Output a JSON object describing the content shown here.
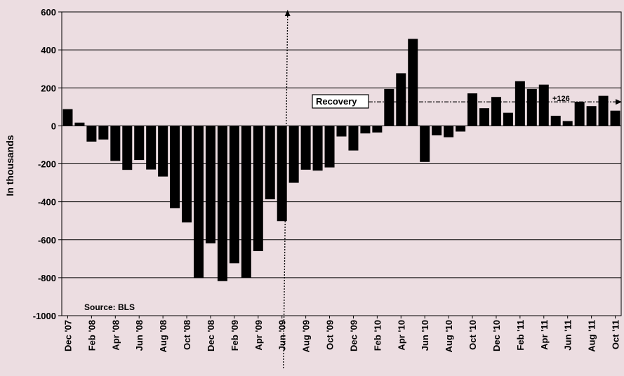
{
  "chart_data": {
    "type": "bar",
    "ylabel": "In thousands",
    "ylim": [
      -1000,
      600
    ],
    "yticks": [
      600,
      400,
      200,
      0,
      -200,
      -400,
      -600,
      -800,
      -1000
    ],
    "grid": true,
    "x_tick_labels": [
      "Dec '07",
      "Feb '08",
      "Apr '08",
      "Jun '08",
      "Aug '08",
      "Oct '08",
      "Dec '08",
      "Feb '09",
      "Apr '09",
      "Jun '09",
      "Aug '09",
      "Oct '09",
      "Dec '09",
      "Feb '10",
      "Apr '10",
      "Jun '10",
      "Aug '10",
      "Oct '10",
      "Dec '10",
      "Feb '11",
      "Apr '11",
      "Jun '11",
      "Aug '11",
      "Oct '11"
    ],
    "categories": [
      "Dec '07",
      "Jan '08",
      "Feb '08",
      "Mar '08",
      "Apr '08",
      "May '08",
      "Jun '08",
      "Jul '08",
      "Aug '08",
      "Sep '08",
      "Oct '08",
      "Nov '08",
      "Dec '08",
      "Jan '09",
      "Feb '09",
      "Mar '09",
      "Apr '09",
      "May '09",
      "Jun '09",
      "Jul '09",
      "Aug '09",
      "Sep '09",
      "Oct '09",
      "Nov '09",
      "Dec '09",
      "Jan '10",
      "Feb '10",
      "Mar '10",
      "Apr '10",
      "May '10",
      "Jun '10",
      "Jul '10",
      "Aug '10",
      "Sep '10",
      "Oct '10",
      "Nov '10",
      "Dec '10",
      "Jan '11",
      "Feb '11",
      "Mar '11",
      "Apr '11",
      "May '11",
      "Jun '11",
      "Jul '11",
      "Aug '11",
      "Sep '11",
      "Oct '11"
    ],
    "values": [
      88,
      17,
      -83,
      -72,
      -185,
      -232,
      -180,
      -230,
      -267,
      -434,
      -509,
      -802,
      -619,
      -818,
      -724,
      -799,
      -660,
      -387,
      -502,
      -300,
      -231,
      -236,
      -219,
      -56,
      -130,
      -40,
      -35,
      194,
      277,
      458,
      -190,
      -50,
      -60,
      -30,
      171,
      93,
      152,
      69,
      235,
      194,
      217,
      53,
      25,
      127,
      104,
      158,
      80
    ],
    "annotations": {
      "source": "Source: BLS",
      "recovery_label": "Recovery",
      "recovery_average": 126,
      "recovery_average_label": "+126",
      "trough_month": "Jun '09"
    },
    "colors": {
      "bar": "#000000",
      "background": "#ecdde1",
      "grid": "#000000"
    }
  }
}
